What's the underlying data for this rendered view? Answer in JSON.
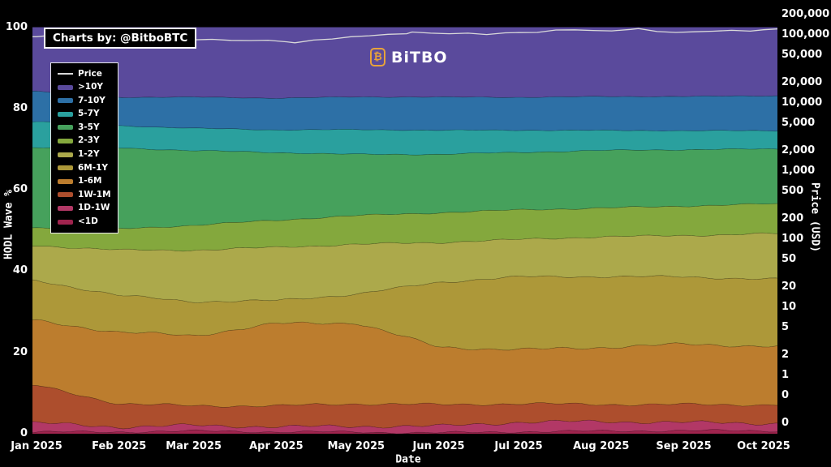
{
  "attribution": {
    "text": "Charts by: @BitboBTC"
  },
  "logo": {
    "icon": "bitcoin-badge-icon",
    "glyph": "₿",
    "text": "BiTBO",
    "color": "#e8a33a"
  },
  "axes": {
    "x": {
      "title": "Date",
      "tick_labels": [
        "Jan 2025",
        "Feb 2025",
        "Mar 2025",
        "Apr 2025",
        "May 2025",
        "Jun 2025",
        "Jul 2025",
        "Aug 2025",
        "Sep 2025",
        "Oct 2025"
      ],
      "tick_days": [
        0,
        31,
        59,
        90,
        120,
        151,
        181,
        212,
        243,
        273
      ]
    },
    "y_left": {
      "title": "HODL Wave %",
      "ticks": [
        100,
        80,
        60,
        40,
        20,
        0
      ],
      "range": [
        0,
        100
      ]
    },
    "y_right": {
      "title": "Price (USD)",
      "scale": "log",
      "tick_labels": [
        "200,000",
        "100,000",
        "50,000",
        "20,000",
        "10,000",
        "5,000",
        "2,000",
        "1,000",
        "500",
        "200",
        "100",
        "50",
        "20",
        "10",
        "5",
        "2",
        "1",
        "0",
        "0"
      ],
      "tick_values": [
        200000,
        100000,
        50000,
        20000,
        10000,
        5000,
        2000,
        1000,
        500,
        200,
        100,
        50,
        20,
        10,
        5,
        2,
        1,
        0.5,
        0.2
      ]
    }
  },
  "chart_data": {
    "type": "area",
    "stacked": true,
    "title": "",
    "xlabel": "Date",
    "ylabel_left": "HODL Wave %",
    "ylabel_right": "Price (USD)",
    "background": "#000000",
    "grid": false,
    "legend_position": "upper left",
    "x_unit": "days since 2025-01-01",
    "x": [
      0,
      31,
      59,
      90,
      120,
      151,
      181,
      212,
      243,
      273,
      278
    ],
    "series": [
      {
        "name": "<1D",
        "color": "#a0244e",
        "values": [
          0.4,
          0.3,
          0.5,
          0.4,
          0.5,
          0.4,
          0.6,
          0.6,
          0.6,
          0.6,
          0.6
        ]
      },
      {
        "name": "1D-1W",
        "color": "#b23866",
        "values": [
          2.0,
          1.3,
          1.7,
          1.6,
          1.5,
          1.4,
          2.0,
          2.2,
          2.2,
          2.2,
          2.2
        ]
      },
      {
        "name": "1W-1M",
        "color": "#ad4e2d",
        "values": [
          9.6,
          6.0,
          4.8,
          4.8,
          5.2,
          5.2,
          4.8,
          4.6,
          4.6,
          4.4,
          4.4
        ]
      },
      {
        "name": "1-6M",
        "color": "#bc7d2e",
        "values": [
          15.9,
          17.3,
          16.9,
          20.1,
          20.1,
          14.5,
          13.5,
          13.9,
          14.5,
          14.1,
          14.1
        ]
      },
      {
        "name": "6M-1Y",
        "color": "#ad9839",
        "values": [
          9.6,
          9.0,
          8.6,
          6.0,
          7.2,
          15.8,
          17.6,
          17.2,
          16.6,
          16.8,
          16.8
        ]
      },
      {
        "name": "1-2Y",
        "color": "#aca94b",
        "values": [
          8.8,
          11.4,
          12.8,
          13.0,
          12.0,
          9.6,
          9.2,
          10.0,
          10.4,
          11.2,
          11.2
        ]
      },
      {
        "name": "2-3Y",
        "color": "#84a83d",
        "values": [
          4.5,
          5.1,
          5.9,
          6.5,
          7.1,
          7.5,
          7.5,
          7.1,
          7.1,
          7.1,
          7.1
        ]
      },
      {
        "name": "3-5Y",
        "color": "#46a15c",
        "values": [
          19.6,
          19.8,
          18.4,
          16.8,
          15.2,
          14.4,
          14.0,
          14.0,
          13.8,
          13.6,
          13.6
        ]
      },
      {
        "name": "5-7Y",
        "color": "#2aa09e",
        "values": [
          6.4,
          5.6,
          5.6,
          5.6,
          6.0,
          5.8,
          5.4,
          5.0,
          4.8,
          4.6,
          4.6
        ]
      },
      {
        "name": "7-10Y",
        "color": "#2d70a6",
        "values": [
          7.5,
          7.0,
          7.6,
          7.7,
          8.0,
          8.2,
          8.2,
          8.4,
          8.4,
          8.5,
          8.5
        ]
      },
      {
        "name": ">10Y",
        "color": "#5a4a9c",
        "values": [
          15.7,
          17.2,
          17.2,
          17.5,
          17.2,
          17.2,
          17.2,
          17.0,
          17.0,
          16.9,
          16.9
        ]
      }
    ],
    "price_series": {
      "name": "Price",
      "color": "#d9d9d9",
      "points": [
        [
          0,
          94000
        ],
        [
          6,
          99000
        ],
        [
          12,
          102000
        ],
        [
          18,
          106000
        ],
        [
          24,
          103000
        ],
        [
          31,
          100000
        ],
        [
          38,
          97000
        ],
        [
          45,
          96500
        ],
        [
          52,
          88000
        ],
        [
          59,
          84500
        ],
        [
          66,
          86000
        ],
        [
          73,
          83000
        ],
        [
          80,
          82500
        ],
        [
          87,
          83500
        ],
        [
          94,
          79000
        ],
        [
          97,
          76500
        ],
        [
          104,
          84000
        ],
        [
          111,
          87000
        ],
        [
          118,
          94000
        ],
        [
          125,
          97000
        ],
        [
          132,
          102000
        ],
        [
          139,
          104000
        ],
        [
          141,
          110000
        ],
        [
          148,
          106000
        ],
        [
          155,
          104000
        ],
        [
          162,
          106000
        ],
        [
          169,
          101000
        ],
        [
          176,
          107000
        ],
        [
          181,
          108000
        ],
        [
          188,
          108500
        ],
        [
          195,
          118000
        ],
        [
          202,
          118500
        ],
        [
          209,
          116000
        ],
        [
          216,
          114500
        ],
        [
          223,
          120000
        ],
        [
          226,
          124000
        ],
        [
          233,
          112000
        ],
        [
          240,
          108500
        ],
        [
          247,
          111000
        ],
        [
          254,
          113000
        ],
        [
          261,
          116500
        ],
        [
          268,
          113500
        ],
        [
          273,
          119000
        ],
        [
          278,
          122000
        ]
      ]
    }
  }
}
